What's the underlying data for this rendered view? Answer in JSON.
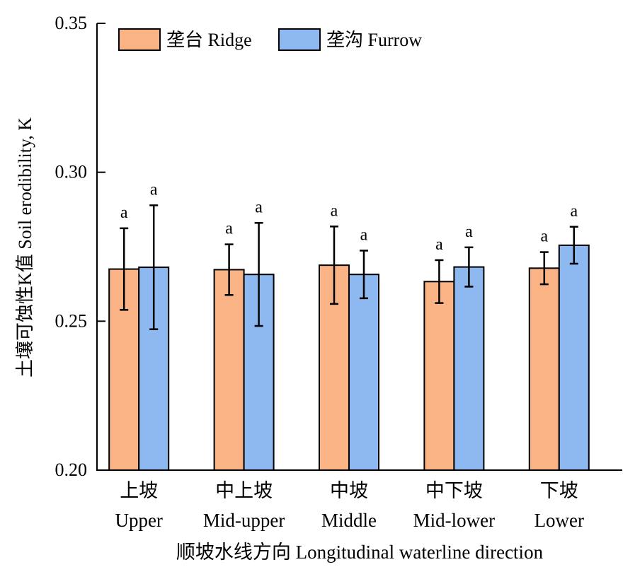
{
  "colors": {
    "ridge": "#F9B384",
    "furrow": "#8DB8F0",
    "axis": "#000000"
  },
  "chart_data": {
    "type": "bar",
    "categories": [
      {
        "cn": "上坡",
        "en": "Upper"
      },
      {
        "cn": "中上坡",
        "en": "Mid-upper"
      },
      {
        "cn": "中坡",
        "en": "Middle"
      },
      {
        "cn": "中下坡",
        "en": "Mid-lower"
      },
      {
        "cn": "下坡",
        "en": "Lower"
      }
    ],
    "series": [
      {
        "name": "垄台 Ridge",
        "color_key": "ridge",
        "values": [
          0.2675,
          0.2673,
          0.2688,
          0.2633,
          0.2678
        ],
        "errors": [
          0.0137,
          0.0085,
          0.013,
          0.0072,
          0.0054
        ],
        "sig": [
          "a",
          "a",
          "a",
          "a",
          "a"
        ]
      },
      {
        "name": "垄沟 Furrow",
        "color_key": "furrow",
        "values": [
          0.2681,
          0.2657,
          0.2657,
          0.2682,
          0.2755
        ],
        "errors": [
          0.0208,
          0.0173,
          0.008,
          0.0066,
          0.0062
        ],
        "sig": [
          "a",
          "a",
          "a",
          "a",
          "a"
        ]
      }
    ],
    "ylim": [
      0.2,
      0.35
    ],
    "yticks": [
      "0.20",
      "0.25",
      "0.30",
      "0.35"
    ],
    "ylabel": "土壤可蚀性K值 Soil erodibility, K",
    "xlabel": "顺坡水线方向 Longitudinal waterline direction",
    "legend_position": "top-left",
    "grid": false
  }
}
